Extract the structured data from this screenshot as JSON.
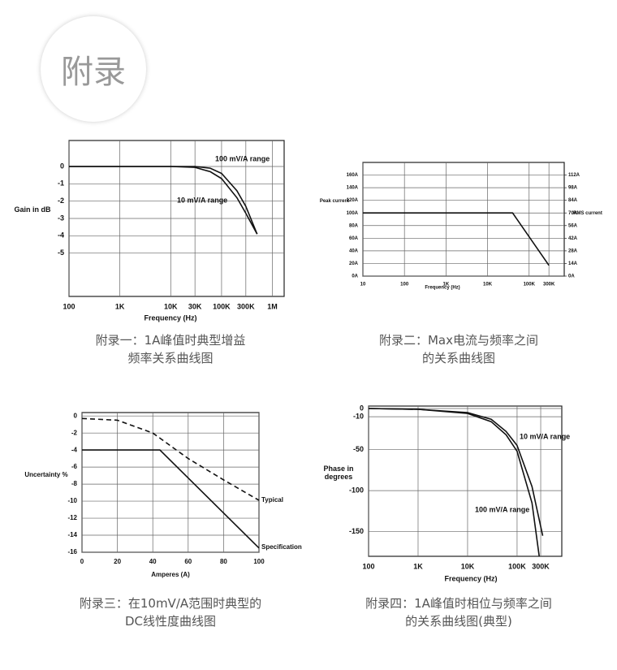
{
  "header": {
    "title": "附录"
  },
  "chart_data": [
    {
      "type": "line",
      "caption": [
        "附录一：1A峰值时典型增益",
        "频率关系曲线图"
      ],
      "xlabel": "Frequency (Hz)",
      "ylabel": "Gain in dB",
      "xlog": true,
      "grid": true,
      "xlim": [
        100,
        1700000
      ],
      "ylim": [
        -7.5,
        1.5
      ],
      "xticks": [
        100,
        {
          "value": 1000,
          "label": "1K"
        },
        {
          "value": 10000,
          "label": "10K"
        },
        {
          "value": 30000,
          "label": "30K"
        },
        {
          "value": 100000,
          "label": "100K"
        },
        {
          "value": 300000,
          "label": "300K"
        },
        {
          "value": 1000000,
          "label": "1M"
        }
      ],
      "yticks": [
        0,
        -1,
        -2,
        -3,
        -4,
        -5
      ],
      "series": [
        {
          "name": "100 mV/A range",
          "color": "#111111",
          "x": [
            100,
            1000,
            10000,
            30000,
            60000,
            100000,
            200000,
            300000,
            500000
          ],
          "values": [
            0,
            0,
            0,
            0,
            -0.1,
            -0.4,
            -1.4,
            -2.3,
            -3.9
          ]
        },
        {
          "name": "10 mV/A range",
          "color": "#111111",
          "x": [
            100,
            1000,
            10000,
            30000,
            60000,
            100000,
            200000,
            300000,
            500000
          ],
          "values": [
            0,
            0,
            0,
            -0.05,
            -0.3,
            -0.7,
            -1.8,
            -2.7,
            -3.9
          ]
        }
      ]
    },
    {
      "type": "line",
      "caption": [
        "附录二：Max电流与频率之间",
        "的关系曲线图"
      ],
      "xlabel": "Frequency (Hz)",
      "ylabel": "Peak current",
      "y2label": "RMS current",
      "xlog": true,
      "grid": true,
      "xlim": [
        10,
        700000
      ],
      "ylim": [
        0,
        180
      ],
      "y2lim": [
        0,
        126
      ],
      "xticks": [
        10,
        100,
        {
          "value": 1000,
          "label": "1K"
        },
        {
          "value": 10000,
          "label": "10K"
        },
        {
          "value": 100000,
          "label": "100K"
        },
        {
          "value": 300000,
          "label": "300K"
        }
      ],
      "yticks": [
        {
          "value": 0,
          "label": "0A"
        },
        {
          "value": 20,
          "label": "20A"
        },
        {
          "value": 40,
          "label": "40A"
        },
        {
          "value": 60,
          "label": "60A"
        },
        {
          "value": 80,
          "label": "80A"
        },
        {
          "value": 100,
          "label": "100A"
        },
        {
          "value": 120,
          "label": "120A"
        },
        {
          "value": 140,
          "label": "140A"
        },
        {
          "value": 160,
          "label": "160A"
        }
      ],
      "y2ticks": [
        {
          "value": 0,
          "label": "0A"
        },
        {
          "value": 14,
          "label": "14A"
        },
        {
          "value": 28,
          "label": "28A"
        },
        {
          "value": 42,
          "label": "42A"
        },
        {
          "value": 56,
          "label": "56A"
        },
        {
          "value": 70,
          "label": "70A"
        },
        {
          "value": 84,
          "label": "84A"
        },
        {
          "value": 98,
          "label": "98A"
        },
        {
          "value": 112,
          "label": "112A"
        }
      ],
      "series": [
        {
          "color": "#111111",
          "x": [
            10,
            40000,
            300000
          ],
          "values": [
            100,
            100,
            17
          ]
        }
      ]
    },
    {
      "type": "line",
      "caption": [
        "附录三：在10mV/A范围时典型的",
        "DC线性度曲线图"
      ],
      "xlabel": "Amperes (A)",
      "ylabel": "Uncertainty %",
      "xlog": false,
      "grid": true,
      "xlim": [
        0,
        100
      ],
      "ylim": [
        -16,
        0.4
      ],
      "xticks": [
        0,
        20,
        40,
        60,
        80,
        100
      ],
      "yticks": [
        0,
        -2,
        -4,
        -6,
        -8,
        -10,
        -12,
        -14,
        -16
      ],
      "series": [
        {
          "name": "Typical",
          "color": "#111111",
          "dash": true,
          "x": [
            0,
            20,
            40,
            60,
            80,
            100
          ],
          "values": [
            -0.3,
            -0.5,
            -2,
            -5,
            -7.5,
            -9.9
          ]
        },
        {
          "name": "Specification",
          "color": "#111111",
          "x": [
            0,
            44,
            100
          ],
          "values": [
            -4,
            -4,
            -15.5
          ]
        }
      ]
    },
    {
      "type": "line",
      "caption": [
        "附录四：1A峰值时相位与频率之间",
        "的关系曲线图(典型)"
      ],
      "xlabel": "Frequency (Hz)",
      "ylabel": "Phase in degrees",
      "xlog": true,
      "grid": true,
      "xlim": [
        100,
        800000
      ],
      "ylim": [
        -180,
        3
      ],
      "xticks": [
        100,
        {
          "value": 1000,
          "label": "1K"
        },
        {
          "value": 10000,
          "label": "10K"
        },
        {
          "value": 100000,
          "label": "100K"
        },
        {
          "value": 300000,
          "label": "300K"
        }
      ],
      "yticks": [
        0,
        -10,
        -50,
        -100,
        -150
      ],
      "series": [
        {
          "name": "10 mV/A range",
          "color": "#111111",
          "x": [
            100,
            1000,
            10000,
            30000,
            60000,
            100000,
            200000,
            330000
          ],
          "values": [
            0,
            -1,
            -5,
            -13,
            -28,
            -45,
            -95,
            -155
          ]
        },
        {
          "name": "100 mV/A range",
          "color": "#111111",
          "x": [
            100,
            1000,
            10000,
            30000,
            60000,
            100000,
            200000,
            280000
          ],
          "values": [
            0,
            -1,
            -6,
            -16,
            -32,
            -52,
            -115,
            -180
          ]
        }
      ]
    }
  ]
}
